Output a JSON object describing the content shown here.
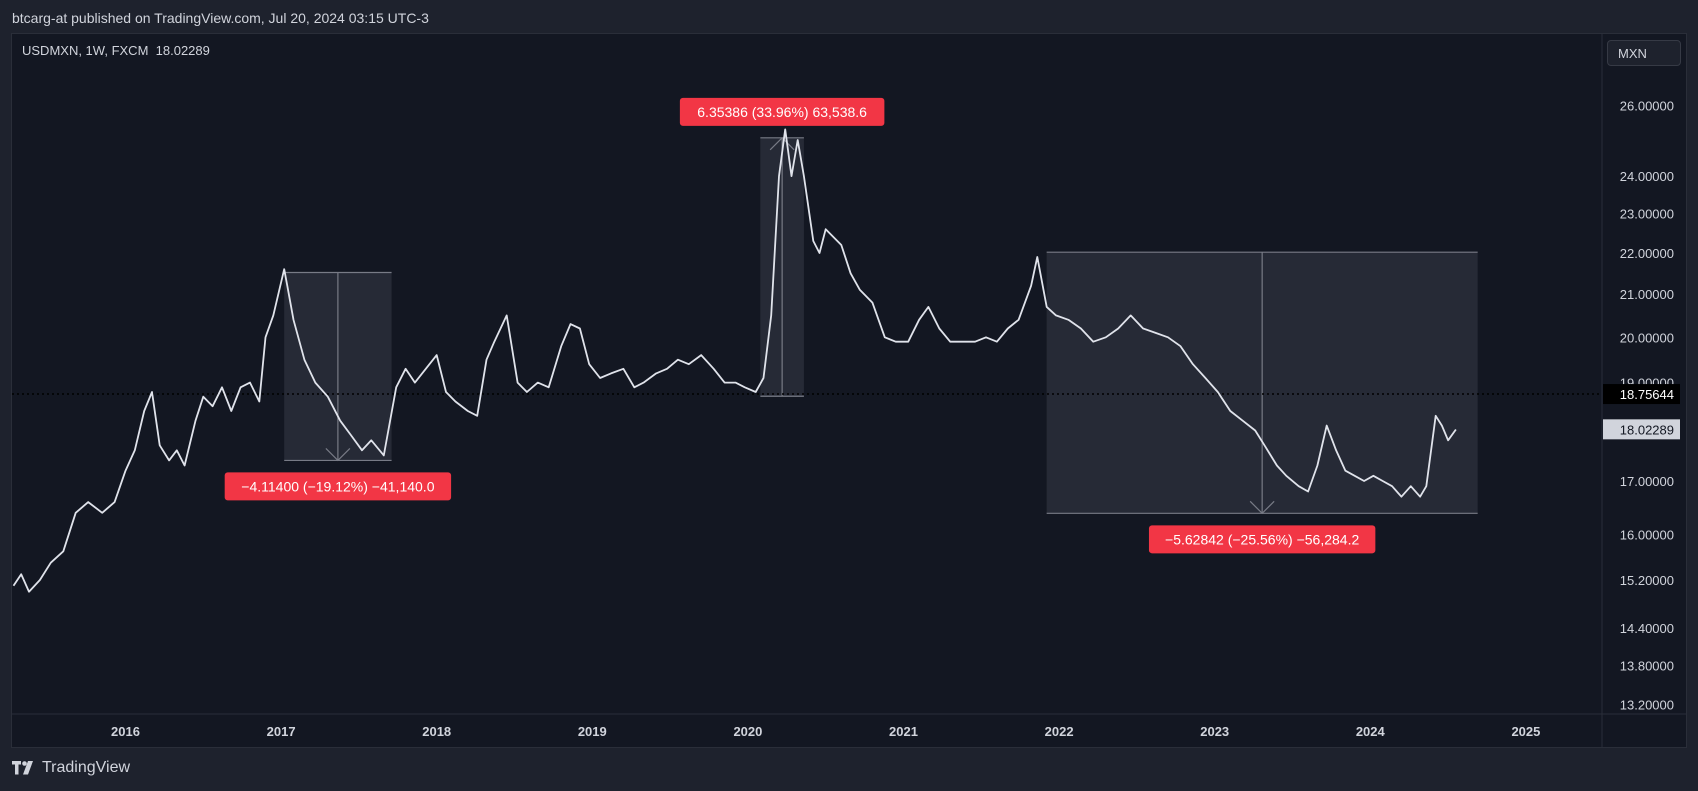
{
  "header": {
    "published_text": "btcarg-at published on TradingView.com, Jul 20, 2024 03:15 UTC-3"
  },
  "symbol": {
    "info": "USDMXN, 1W, FXCM",
    "last_value": "18.02289"
  },
  "currency_button": "MXN",
  "brand": {
    "name": "TradingView",
    "icon": "tradingview-logo-icon"
  },
  "colors": {
    "background": "#131722",
    "line": "#e0e3eb",
    "annotation_red": "#f23645",
    "range_fill": "#2a2e39",
    "range_border": "#787b86"
  },
  "chart_data": {
    "type": "line",
    "title": "USDMXN, 1W, FXCM",
    "series": [
      {
        "name": "USDMXN",
        "points": [
          [
            2015.28,
            15.1
          ],
          [
            2015.33,
            15.3
          ],
          [
            2015.38,
            15.0
          ],
          [
            2015.45,
            15.2
          ],
          [
            2015.52,
            15.5
          ],
          [
            2015.6,
            15.7
          ],
          [
            2015.68,
            16.4
          ],
          [
            2015.76,
            16.6
          ],
          [
            2015.85,
            16.4
          ],
          [
            2015.93,
            16.6
          ],
          [
            2016.0,
            17.2
          ],
          [
            2016.06,
            17.6
          ],
          [
            2016.12,
            18.4
          ],
          [
            2016.17,
            18.8
          ],
          [
            2016.22,
            17.7
          ],
          [
            2016.28,
            17.4
          ],
          [
            2016.33,
            17.6
          ],
          [
            2016.38,
            17.3
          ],
          [
            2016.45,
            18.2
          ],
          [
            2016.5,
            18.7
          ],
          [
            2016.56,
            18.5
          ],
          [
            2016.62,
            18.9
          ],
          [
            2016.68,
            18.4
          ],
          [
            2016.74,
            18.9
          ],
          [
            2016.8,
            19.0
          ],
          [
            2016.86,
            18.6
          ],
          [
            2016.9,
            20.0
          ],
          [
            2016.95,
            20.5
          ],
          [
            2017.02,
            21.6
          ],
          [
            2017.04,
            21.2
          ],
          [
            2017.08,
            20.4
          ],
          [
            2017.15,
            19.5
          ],
          [
            2017.22,
            19.0
          ],
          [
            2017.3,
            18.7
          ],
          [
            2017.38,
            18.2
          ],
          [
            2017.45,
            17.9
          ],
          [
            2017.52,
            17.6
          ],
          [
            2017.58,
            17.8
          ],
          [
            2017.66,
            17.5
          ],
          [
            2017.74,
            18.9
          ],
          [
            2017.8,
            19.3
          ],
          [
            2017.86,
            19.0
          ],
          [
            2017.93,
            19.3
          ],
          [
            2018.0,
            19.6
          ],
          [
            2018.06,
            18.8
          ],
          [
            2018.12,
            18.6
          ],
          [
            2018.2,
            18.4
          ],
          [
            2018.26,
            18.3
          ],
          [
            2018.32,
            19.5
          ],
          [
            2018.37,
            19.9
          ],
          [
            2018.45,
            20.5
          ],
          [
            2018.52,
            19.0
          ],
          [
            2018.58,
            18.8
          ],
          [
            2018.65,
            19.0
          ],
          [
            2018.72,
            18.9
          ],
          [
            2018.8,
            19.8
          ],
          [
            2018.86,
            20.3
          ],
          [
            2018.92,
            20.2
          ],
          [
            2018.98,
            19.4
          ],
          [
            2019.05,
            19.1
          ],
          [
            2019.12,
            19.2
          ],
          [
            2019.2,
            19.3
          ],
          [
            2019.27,
            18.9
          ],
          [
            2019.33,
            19.0
          ],
          [
            2019.41,
            19.2
          ],
          [
            2019.48,
            19.3
          ],
          [
            2019.55,
            19.5
          ],
          [
            2019.62,
            19.4
          ],
          [
            2019.7,
            19.6
          ],
          [
            2019.78,
            19.3
          ],
          [
            2019.85,
            19.0
          ],
          [
            2019.92,
            19.0
          ],
          [
            2019.98,
            18.9
          ],
          [
            2020.05,
            18.8
          ],
          [
            2020.1,
            19.1
          ],
          [
            2020.15,
            20.5
          ],
          [
            2020.2,
            24.0
          ],
          [
            2020.24,
            25.3
          ],
          [
            2020.28,
            24.0
          ],
          [
            2020.32,
            25.0
          ],
          [
            2020.36,
            24.0
          ],
          [
            2020.42,
            22.3
          ],
          [
            2020.46,
            22.0
          ],
          [
            2020.5,
            22.6
          ],
          [
            2020.55,
            22.4
          ],
          [
            2020.6,
            22.2
          ],
          [
            2020.66,
            21.5
          ],
          [
            2020.72,
            21.1
          ],
          [
            2020.8,
            20.8
          ],
          [
            2020.88,
            20.0
          ],
          [
            2020.95,
            19.9
          ],
          [
            2021.03,
            19.9
          ],
          [
            2021.1,
            20.4
          ],
          [
            2021.16,
            20.7
          ],
          [
            2021.23,
            20.2
          ],
          [
            2021.3,
            19.9
          ],
          [
            2021.38,
            19.9
          ],
          [
            2021.46,
            19.9
          ],
          [
            2021.53,
            20.0
          ],
          [
            2021.6,
            19.9
          ],
          [
            2021.67,
            20.2
          ],
          [
            2021.74,
            20.4
          ],
          [
            2021.82,
            21.2
          ],
          [
            2021.86,
            21.9
          ],
          [
            2021.92,
            20.7
          ],
          [
            2021.98,
            20.5
          ],
          [
            2022.06,
            20.4
          ],
          [
            2022.14,
            20.2
          ],
          [
            2022.22,
            19.9
          ],
          [
            2022.3,
            20.0
          ],
          [
            2022.38,
            20.2
          ],
          [
            2022.46,
            20.5
          ],
          [
            2022.54,
            20.2
          ],
          [
            2022.62,
            20.1
          ],
          [
            2022.7,
            20.0
          ],
          [
            2022.78,
            19.8
          ],
          [
            2022.86,
            19.4
          ],
          [
            2022.94,
            19.1
          ],
          [
            2023.02,
            18.8
          ],
          [
            2023.1,
            18.4
          ],
          [
            2023.18,
            18.2
          ],
          [
            2023.26,
            18.0
          ],
          [
            2023.32,
            17.7
          ],
          [
            2023.4,
            17.3
          ],
          [
            2023.46,
            17.1
          ],
          [
            2023.54,
            16.9
          ],
          [
            2023.6,
            16.8
          ],
          [
            2023.66,
            17.3
          ],
          [
            2023.72,
            18.1
          ],
          [
            2023.78,
            17.6
          ],
          [
            2023.84,
            17.2
          ],
          [
            2023.9,
            17.1
          ],
          [
            2023.96,
            17.0
          ],
          [
            2024.02,
            17.1
          ],
          [
            2024.08,
            17.0
          ],
          [
            2024.14,
            16.9
          ],
          [
            2024.2,
            16.7
          ],
          [
            2024.26,
            16.9
          ],
          [
            2024.32,
            16.7
          ],
          [
            2024.36,
            16.9
          ],
          [
            2024.42,
            18.3
          ],
          [
            2024.46,
            18.1
          ],
          [
            2024.5,
            17.8
          ],
          [
            2024.55,
            18.02
          ]
        ]
      }
    ],
    "y_axis": {
      "scale": "log",
      "ticks": [
        "26.00000",
        "24.00000",
        "23.00000",
        "22.00000",
        "21.00000",
        "20.00000",
        "19.00000",
        "17.00000",
        "16.00000",
        "15.20000",
        "14.40000",
        "13.80000",
        "13.20000"
      ],
      "ylim": [
        13.0,
        28.0
      ]
    },
    "x_axis": {
      "ticks": [
        "2016",
        "2017",
        "2018",
        "2019",
        "2020",
        "2021",
        "2022",
        "2023",
        "2024",
        "2025"
      ],
      "xlim": [
        2015.27,
        2025.5
      ]
    },
    "price_lines": [
      {
        "value": 18.75644,
        "label": "18.75644",
        "style": "dotted"
      },
      {
        "value": 18.02289,
        "label": "18.02289",
        "style": "current"
      }
    ],
    "measurements": [
      {
        "label": "−4.11400 (−19.12%) −41,140.0",
        "x_start": 2017.02,
        "x_end": 2017.71,
        "y_top": 21.52,
        "y_bottom": 17.4,
        "direction": "down",
        "label_position": "below"
      },
      {
        "label": "6.35386 (33.96%) 63,538.6",
        "x_start": 2020.08,
        "x_end": 2020.36,
        "y_top": 25.06,
        "y_bottom": 18.71,
        "direction": "up",
        "label_position": "above"
      },
      {
        "label": "−5.62842 (−25.56%) −56,284.2",
        "x_start": 2021.92,
        "x_end": 2024.69,
        "y_top": 22.02,
        "y_bottom": 16.39,
        "direction": "down",
        "label_position": "below"
      }
    ],
    "grid": false,
    "legend": "none"
  }
}
